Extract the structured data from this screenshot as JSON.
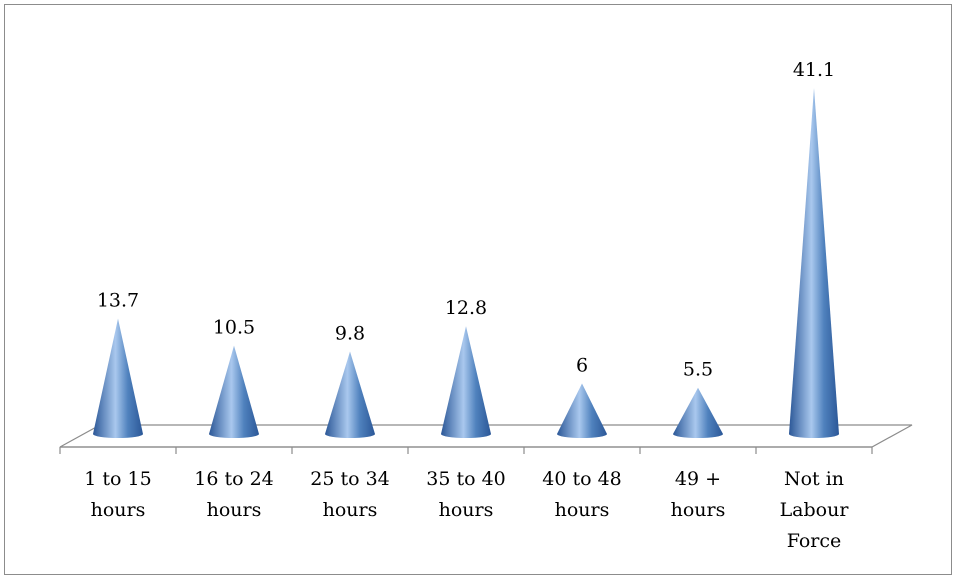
{
  "chart_data": {
    "type": "bar",
    "bar_shape": "cone",
    "title": "",
    "xlabel": "",
    "ylabel": "",
    "categories": [
      [
        "1 to 15",
        "hours"
      ],
      [
        "16 to 24",
        "hours"
      ],
      [
        "25 to 34",
        "hours"
      ],
      [
        "35 to 40",
        "hours"
      ],
      [
        "40 to 48",
        "hours"
      ],
      [
        "49 +",
        "hours"
      ],
      [
        "Not in",
        "Labour",
        "Force"
      ]
    ],
    "values": [
      13.7,
      10.5,
      9.8,
      12.8,
      6,
      5.5,
      41.1
    ],
    "data_labels": [
      "13.7",
      "10.5",
      "9.8",
      "12.8",
      "6",
      "5.5",
      "41.1"
    ],
    "ylim": [
      0,
      41.1
    ],
    "grid": false,
    "legend": "none",
    "colors": {
      "bar": "#4f81bd",
      "bar_light": "#a9c8ee",
      "bar_dark": "#2b5797",
      "axis": "#8c8c8c"
    }
  }
}
